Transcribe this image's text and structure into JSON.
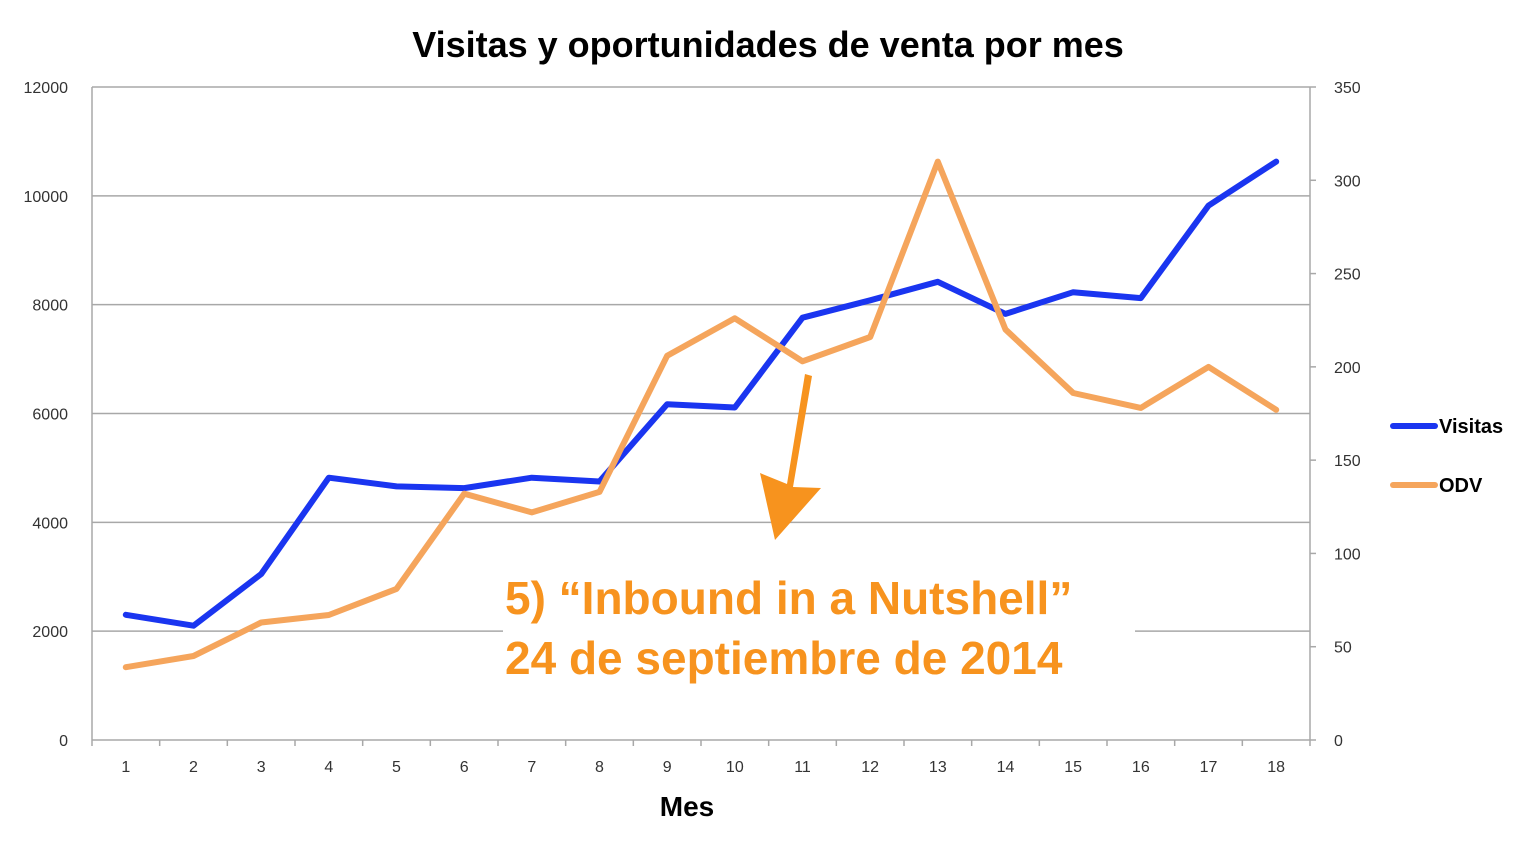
{
  "chart_data": {
    "type": "line",
    "title": "Visitas y oportunidades de venta por mes",
    "xlabel": "Mes",
    "ylabel": "",
    "y2label": "",
    "categories": [
      "1",
      "2",
      "3",
      "4",
      "5",
      "6",
      "7",
      "8",
      "9",
      "10",
      "11",
      "12",
      "13",
      "14",
      "15",
      "16",
      "17",
      "18"
    ],
    "ylim": [
      0,
      12000
    ],
    "y2lim": [
      0,
      350
    ],
    "yticks": [
      "0",
      "2000",
      "4000",
      "6000",
      "8000",
      "10000",
      "12000"
    ],
    "y2ticks": [
      "0",
      "50",
      "100",
      "150",
      "200",
      "250",
      "300",
      "350"
    ],
    "grid": true,
    "legend_position": "right",
    "series": [
      {
        "name": "Visitas",
        "axis": "left",
        "color": "#1a35f0",
        "values": [
          2300,
          2100,
          3050,
          4820,
          4660,
          4630,
          4820,
          4750,
          6170,
          6110,
          7760,
          8080,
          8420,
          7830,
          8230,
          8120,
          9820,
          10630
        ]
      },
      {
        "name": "ODV",
        "axis": "right",
        "color": "#f5a55c",
        "values": [
          39,
          45,
          63,
          67,
          81,
          132,
          122,
          133,
          206,
          226,
          203,
          216,
          310,
          220,
          186,
          178,
          200,
          177
        ]
      }
    ],
    "annotation": {
      "line1": "5) “Inbound in a Nutshell”",
      "line2": "24 de septiembre de 2014",
      "color": "#f7931e",
      "x": 11,
      "arrow": "down"
    }
  }
}
